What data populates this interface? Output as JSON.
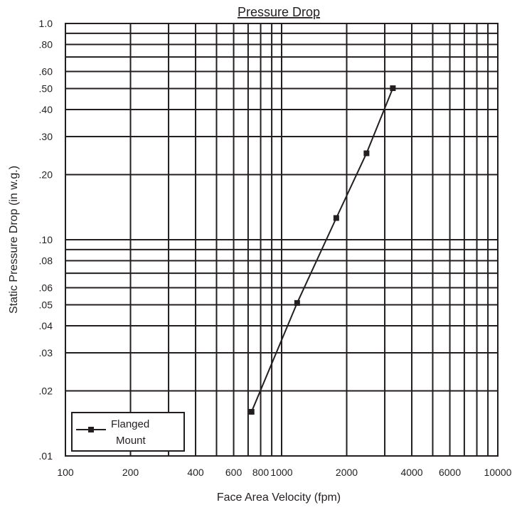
{
  "chart_data": {
    "type": "line",
    "title": "Pressure Drop",
    "xlabel": "Face Area Velocity (fpm)",
    "ylabel": "Static Pressure Drop (in w.g.)",
    "x_scale": "log",
    "y_scale": "log",
    "xlim": [
      100,
      10000
    ],
    "ylim": [
      0.01,
      1.0
    ],
    "grid": true,
    "legend_position": "bottom-left",
    "x_ticks": [
      {
        "value": 100,
        "label": "100"
      },
      {
        "value": 200,
        "label": "200"
      },
      {
        "value": 400,
        "label": "400"
      },
      {
        "value": 600,
        "label": "600"
      },
      {
        "value": 800,
        "label": "800"
      },
      {
        "value": 1000,
        "label": "1000"
      },
      {
        "value": 2000,
        "label": "2000"
      },
      {
        "value": 4000,
        "label": "4000"
      },
      {
        "value": 6000,
        "label": "6000"
      },
      {
        "value": 10000,
        "label": "10000"
      }
    ],
    "y_ticks": [
      {
        "value": 1.0,
        "label": "1.0"
      },
      {
        "value": 0.8,
        "label": ".80"
      },
      {
        "value": 0.6,
        "label": ".60"
      },
      {
        "value": 0.5,
        "label": ".50"
      },
      {
        "value": 0.4,
        "label": ".40"
      },
      {
        "value": 0.3,
        "label": ".30"
      },
      {
        "value": 0.2,
        "label": ".20"
      },
      {
        "value": 0.1,
        "label": ".10"
      },
      {
        "value": 0.08,
        "label": ".08"
      },
      {
        "value": 0.06,
        "label": ".06"
      },
      {
        "value": 0.05,
        "label": ".05"
      },
      {
        "value": 0.04,
        "label": ".04"
      },
      {
        "value": 0.03,
        "label": ".03"
      },
      {
        "value": 0.02,
        "label": ".02"
      },
      {
        "value": 0.01,
        "label": ".01"
      }
    ],
    "x_grid": [
      100,
      200,
      300,
      400,
      500,
      600,
      700,
      800,
      900,
      1000,
      2000,
      3000,
      4000,
      5000,
      6000,
      7000,
      8000,
      9000,
      10000
    ],
    "y_grid": [
      0.01,
      0.02,
      0.03,
      0.04,
      0.05,
      0.06,
      0.07,
      0.08,
      0.09,
      0.1,
      0.2,
      0.3,
      0.4,
      0.5,
      0.6,
      0.7,
      0.8,
      0.9,
      1.0
    ],
    "series": [
      {
        "name": "Flanged Mount",
        "legend_lines": [
          "Flanged",
          "Mount"
        ],
        "marker": "square",
        "color": "#231f20",
        "x": [
          726,
          1180,
          1790,
          2470,
          3270
        ],
        "y": [
          0.016,
          0.051,
          0.126,
          0.251,
          0.502
        ]
      }
    ]
  }
}
